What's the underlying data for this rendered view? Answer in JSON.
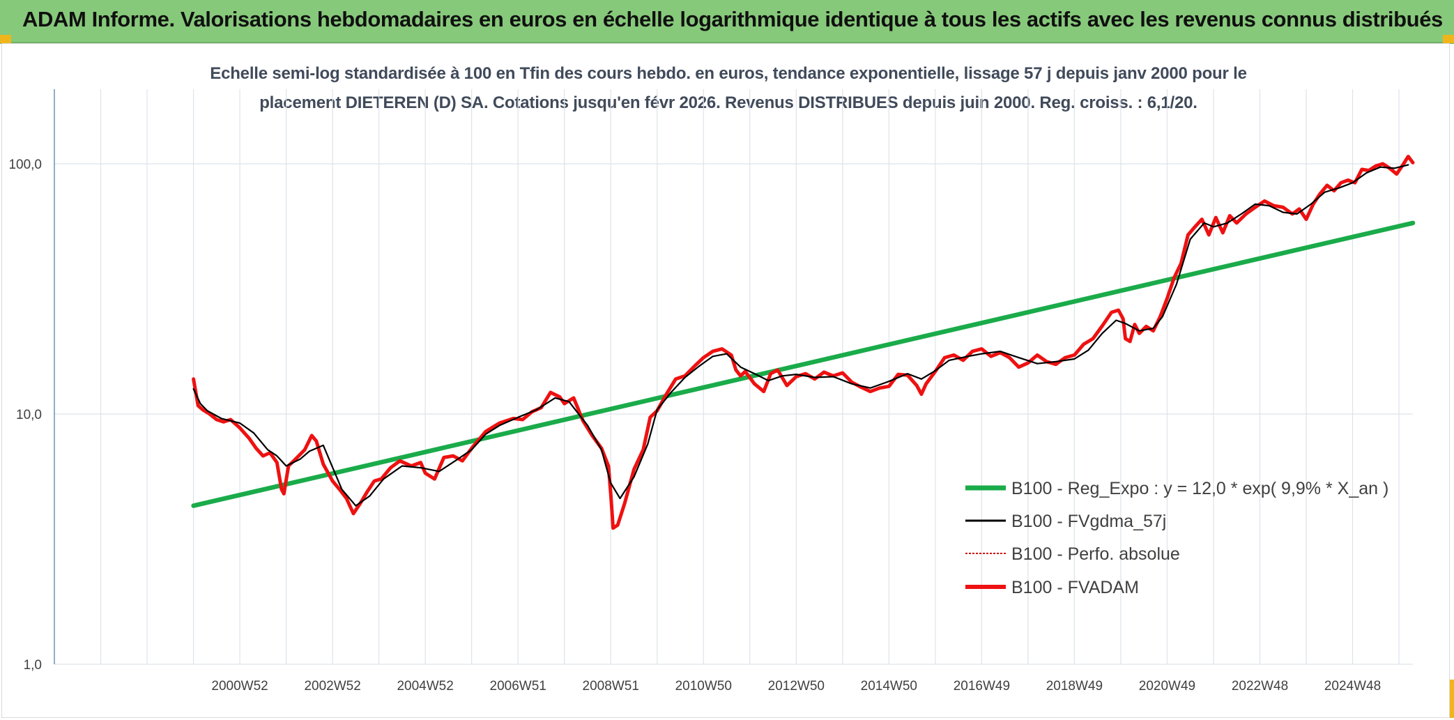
{
  "banner": {
    "title": "ADAM Informe. Valorisations hebdomadaires en euros en échelle logarithmique identique à tous les actifs avec les revenus connus distribués"
  },
  "colors": {
    "banner_bg": "#86c97a",
    "corner_accent": "#f1b51c",
    "regression": "#1aab4a",
    "moving_average": "#000000",
    "perfo_absolue": "#d00000",
    "fvadam": "#ee1111",
    "grid": "#dde3ea"
  },
  "chart_data": {
    "type": "line",
    "subtitle_lines": [
      "Echelle semi-log standardisée à 100 en Tfin des cours hebdo. en euros, tendance exponentielle, lissage 57 j depuis janv 2000 pour le",
      "placement DIETEREN (D) SA. Cotations jusqu'en févr 2026. Revenus DISTRIBUES depuis juin 2000. Reg. croiss. : 6,1/20."
    ],
    "y_scale": "log",
    "ylim": [
      1,
      100
    ],
    "y_ticks": [
      {
        "value": 100,
        "label": "100,0"
      },
      {
        "value": 10,
        "label": "10,0"
      },
      {
        "value": 1,
        "label": "1,0"
      }
    ],
    "x_range": [
      1997.0,
      2026.3
    ],
    "x_ticks": [
      {
        "value": 2001.0,
        "label": "2000W52"
      },
      {
        "value": 2003.0,
        "label": "2002W52"
      },
      {
        "value": 2005.0,
        "label": "2004W52"
      },
      {
        "value": 2007.0,
        "label": "2006W51"
      },
      {
        "value": 2009.0,
        "label": "2008W51"
      },
      {
        "value": 2011.0,
        "label": "2010W50"
      },
      {
        "value": 2013.0,
        "label": "2012W50"
      },
      {
        "value": 2015.0,
        "label": "2014W50"
      },
      {
        "value": 2017.0,
        "label": "2016W49"
      },
      {
        "value": 2019.0,
        "label": "2018W49"
      },
      {
        "value": 2021.0,
        "label": "2020W49"
      },
      {
        "value": 2023.0,
        "label": "2022W48"
      },
      {
        "value": 2025.0,
        "label": "2024W48"
      }
    ],
    "vertical_grid_x": [
      1998.0,
      1999.0,
      2000.0,
      2001.0,
      2002.0,
      2003.0,
      2004.0,
      2005.0,
      2006.0,
      2007.0,
      2008.0,
      2009.0,
      2010.0,
      2011.0,
      2012.0,
      2013.0,
      2014.0,
      2015.0,
      2016.0,
      2017.0,
      2018.0,
      2019.0,
      2020.0,
      2021.0,
      2022.0,
      2023.0,
      2024.0,
      2025.0,
      2026.0
    ],
    "grid": true,
    "legend_position": "bottom-right, inside plot",
    "series": [
      {
        "name": "B100 - Reg_Expo : y = 12,0 * exp( 9,9% *  X_an )",
        "style": "regression",
        "x": [
          2000.0,
          2026.3
        ],
        "y": [
          4.3,
          58.0
        ]
      },
      {
        "name": "B100 - FVgdma_57j",
        "style": "moving_average",
        "x": [
          2000.0,
          2000.15,
          2000.3,
          2000.6,
          2001.0,
          2001.3,
          2001.6,
          2001.8,
          2002.0,
          2002.3,
          2002.5,
          2002.8,
          2003.2,
          2003.5,
          2003.8,
          2004.1,
          2004.5,
          2004.9,
          2005.3,
          2005.7,
          2006.0,
          2006.3,
          2006.6,
          2007.0,
          2007.4,
          2007.8,
          2008.1,
          2008.5,
          2008.8,
          2009.0,
          2009.2,
          2009.5,
          2009.8,
          2010.0,
          2010.3,
          2010.6,
          2010.9,
          2011.2,
          2011.5,
          2011.8,
          2012.1,
          2012.4,
          2012.7,
          2013.0,
          2013.4,
          2013.8,
          2014.2,
          2014.6,
          2015.0,
          2015.4,
          2015.7,
          2016.0,
          2016.3,
          2016.7,
          2017.0,
          2017.4,
          2017.8,
          2018.2,
          2018.6,
          2019.0,
          2019.3,
          2019.6,
          2019.9,
          2020.1,
          2020.4,
          2020.7,
          2020.9,
          2021.2,
          2021.5,
          2021.8,
          2022.0,
          2022.3,
          2022.6,
          2022.9,
          2023.2,
          2023.5,
          2023.8,
          2024.1,
          2024.4,
          2024.7,
          2025.0,
          2025.3,
          2025.6,
          2025.9,
          2026.2
        ],
        "y": [
          12.6,
          11.0,
          10.3,
          9.6,
          9.2,
          8.4,
          7.2,
          6.8,
          6.2,
          6.6,
          7.1,
          7.5,
          5.0,
          4.3,
          4.7,
          5.5,
          6.2,
          6.1,
          5.9,
          6.6,
          7.2,
          8.3,
          9.0,
          9.7,
          10.4,
          11.6,
          11.2,
          9.0,
          7.2,
          5.3,
          4.6,
          5.6,
          7.6,
          10.4,
          12.2,
          14.0,
          15.5,
          17.0,
          17.4,
          15.4,
          14.5,
          13.6,
          14.2,
          14.4,
          14.0,
          14.1,
          13.2,
          12.7,
          13.5,
          14.5,
          13.8,
          14.9,
          16.4,
          17.0,
          17.4,
          17.8,
          16.8,
          15.9,
          16.2,
          16.6,
          18.0,
          21.0,
          23.7,
          23.0,
          21.5,
          22.0,
          24.5,
          33.0,
          50.0,
          58.0,
          56.0,
          58.0,
          63.0,
          69.0,
          68.0,
          64.0,
          63.0,
          69.0,
          77.0,
          80.0,
          84.0,
          92.0,
          97.0,
          96.0,
          99.0
        ]
      },
      {
        "name": "B100 - Perfo. absolue",
        "style": "perfo_absolue",
        "x": [],
        "y": []
      },
      {
        "name": "B100 - FVADAM",
        "style": "fvadam",
        "x": [
          2000.0,
          2000.05,
          2000.1,
          2000.2,
          2000.35,
          2000.5,
          2000.65,
          2000.8,
          2001.0,
          2001.2,
          2001.35,
          2001.5,
          2001.65,
          2001.8,
          2001.9,
          2001.95,
          2002.05,
          2002.2,
          2002.4,
          2002.55,
          2002.65,
          2002.8,
          2003.0,
          2003.15,
          2003.3,
          2003.45,
          2003.6,
          2003.75,
          2003.9,
          2004.05,
          2004.25,
          2004.45,
          2004.7,
          2004.9,
          2005.0,
          2005.2,
          2005.4,
          2005.6,
          2005.8,
          2006.0,
          2006.3,
          2006.6,
          2006.9,
          2007.1,
          2007.3,
          2007.5,
          2007.7,
          2007.9,
          2008.0,
          2008.2,
          2008.4,
          2008.6,
          2008.8,
          2008.95,
          2009.0,
          2009.05,
          2009.15,
          2009.3,
          2009.5,
          2009.7,
          2009.85,
          2010.0,
          2010.2,
          2010.4,
          2010.6,
          2010.8,
          2011.0,
          2011.2,
          2011.4,
          2011.6,
          2011.7,
          2011.8,
          2011.9,
          2012.1,
          2012.3,
          2012.45,
          2012.6,
          2012.8,
          2013.0,
          2013.2,
          2013.4,
          2013.6,
          2013.8,
          2014.0,
          2014.2,
          2014.4,
          2014.6,
          2014.8,
          2015.0,
          2015.2,
          2015.4,
          2015.6,
          2015.7,
          2015.8,
          2016.0,
          2016.2,
          2016.4,
          2016.6,
          2016.8,
          2017.0,
          2017.2,
          2017.4,
          2017.6,
          2017.8,
          2018.0,
          2018.2,
          2018.4,
          2018.6,
          2018.8,
          2019.0,
          2019.2,
          2019.4,
          2019.6,
          2019.8,
          2019.95,
          2020.05,
          2020.1,
          2020.2,
          2020.3,
          2020.4,
          2020.55,
          2020.7,
          2020.85,
          2021.0,
          2021.15,
          2021.3,
          2021.45,
          2021.6,
          2021.75,
          2021.9,
          2022.05,
          2022.2,
          2022.35,
          2022.5,
          2022.7,
          2022.9,
          2023.1,
          2023.3,
          2023.5,
          2023.7,
          2023.85,
          2024.0,
          2024.15,
          2024.3,
          2024.45,
          2024.6,
          2024.75,
          2024.9,
          2025.05,
          2025.2,
          2025.35,
          2025.5,
          2025.65,
          2025.8,
          2025.95,
          2026.1,
          2026.2,
          2026.3
        ],
        "y": [
          13.8,
          12.2,
          10.8,
          10.4,
          10.0,
          9.5,
          9.3,
          9.5,
          8.8,
          8.0,
          7.3,
          6.8,
          7.0,
          6.4,
          5.0,
          4.8,
          6.2,
          6.6,
          7.2,
          8.2,
          7.8,
          6.3,
          5.4,
          5.0,
          4.6,
          4.0,
          4.4,
          4.9,
          5.4,
          5.5,
          6.1,
          6.5,
          6.2,
          6.4,
          5.8,
          5.5,
          6.7,
          6.8,
          6.5,
          7.3,
          8.5,
          9.2,
          9.6,
          9.5,
          10.2,
          10.6,
          12.2,
          11.7,
          11.0,
          11.6,
          9.4,
          8.2,
          7.3,
          6.2,
          4.8,
          3.5,
          3.6,
          4.4,
          6.0,
          7.2,
          9.7,
          10.3,
          12.0,
          13.8,
          14.2,
          15.5,
          16.8,
          17.8,
          18.2,
          17.2,
          15.0,
          14.2,
          14.8,
          13.2,
          12.3,
          14.5,
          15.0,
          13.0,
          14.1,
          14.5,
          13.8,
          14.7,
          14.2,
          14.6,
          13.4,
          12.8,
          12.3,
          12.7,
          12.9,
          14.4,
          14.3,
          13.0,
          12.0,
          13.2,
          14.8,
          16.8,
          17.2,
          16.4,
          17.8,
          18.2,
          17.0,
          17.6,
          16.8,
          15.4,
          16.0,
          17.2,
          16.2,
          15.8,
          16.8,
          17.2,
          19.0,
          20.0,
          22.5,
          25.5,
          26.0,
          24.0,
          20.0,
          19.5,
          22.8,
          21.0,
          22.4,
          21.5,
          24.5,
          29.0,
          35.0,
          40.0,
          52.0,
          56.0,
          60.0,
          52.0,
          61.0,
          53.0,
          62.0,
          58.0,
          63.0,
          67.0,
          71.0,
          68.0,
          67.0,
          63.0,
          66.0,
          60.0,
          69.0,
          76.0,
          82.0,
          78.0,
          84.0,
          86.0,
          84.0,
          95.0,
          94.0,
          98.0,
          100.0,
          96.0,
          91.0,
          100.0,
          107.0,
          101.0
        ]
      }
    ]
  }
}
